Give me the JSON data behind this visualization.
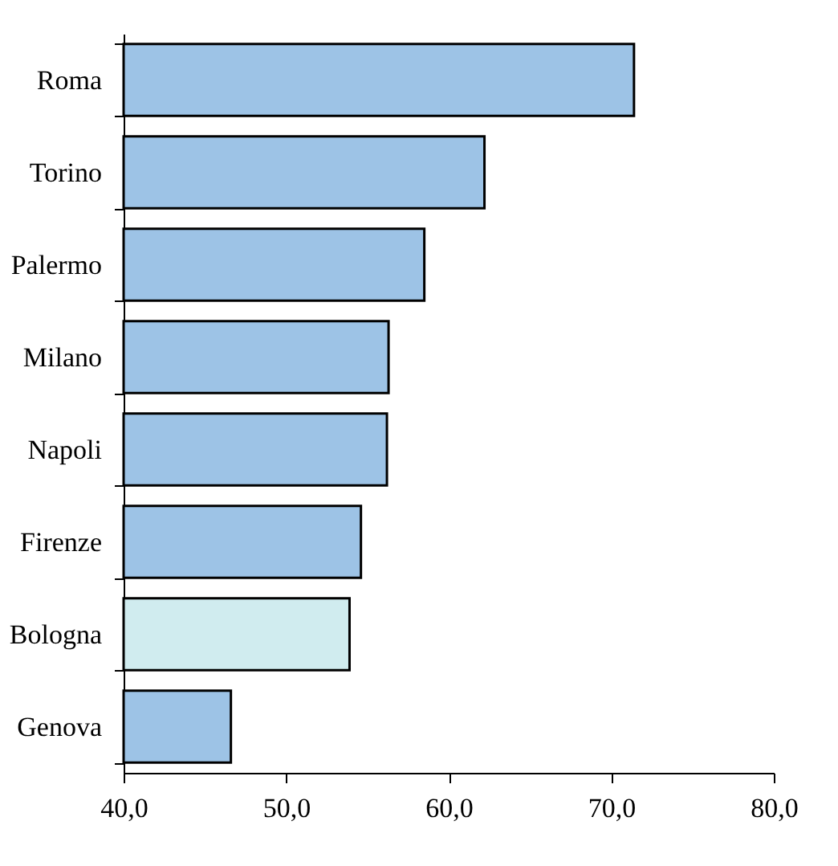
{
  "chart_data": {
    "type": "bar",
    "orientation": "horizontal",
    "categories": [
      "Roma",
      "Torino",
      "Palermo",
      "Milano",
      "Napoli",
      "Firenze",
      "Bologna",
      "Genova"
    ],
    "values": [
      71.4,
      62.2,
      58.5,
      56.3,
      56.2,
      54.6,
      53.9,
      46.6
    ],
    "colors": [
      "#9dc3e6",
      "#9dc3e6",
      "#9dc3e6",
      "#9dc3e6",
      "#9dc3e6",
      "#9dc3e6",
      "#d0ecef",
      "#9dc3e6"
    ],
    "xlim": [
      40,
      80
    ],
    "xticks": [
      {
        "value": 40,
        "label": "40,0"
      },
      {
        "value": 50,
        "label": "50,0"
      },
      {
        "value": 60,
        "label": "60,0"
      },
      {
        "value": 70,
        "label": "70,0"
      },
      {
        "value": 80,
        "label": "80,0"
      }
    ],
    "grid": false
  }
}
